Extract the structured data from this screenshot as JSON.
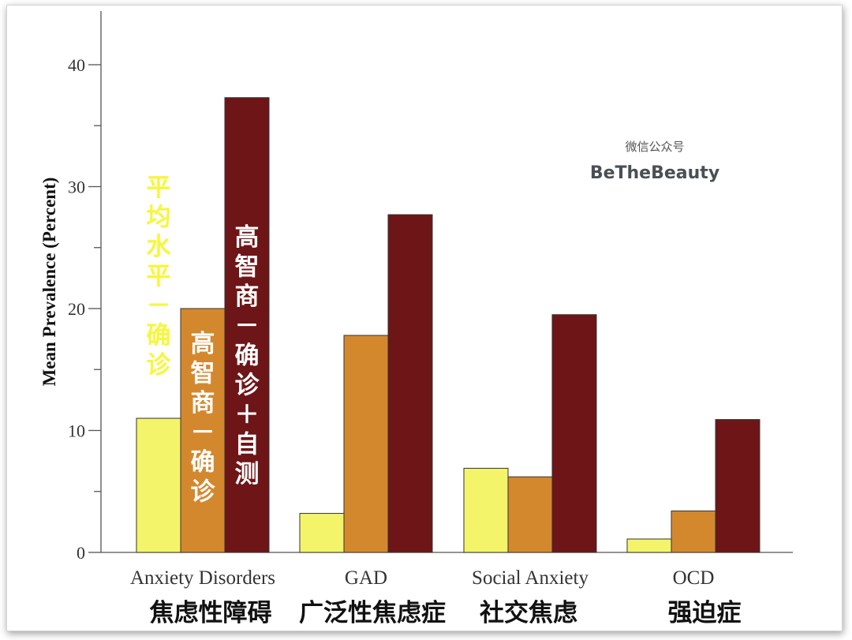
{
  "chart_data": {
    "type": "bar",
    "ylabel": "Mean Prevalence (Percent)",
    "ylim": [
      0,
      40
    ],
    "yticks": [
      0,
      10,
      20,
      30,
      40
    ],
    "categories": [
      "Anxiety Disorders",
      "GAD",
      "Social Anxiety",
      "OCD"
    ],
    "categories_cn": [
      "焦虑性障碍",
      "广泛性焦虑症",
      "社交焦虑",
      "强迫症"
    ],
    "series": [
      {
        "name": "平均水平－确诊",
        "color": "#f3f46a",
        "text_color": "#f6f63e",
        "values": [
          11,
          3.2,
          6.9,
          1.1
        ]
      },
      {
        "name": "高智商－确诊",
        "color": "#d4882e",
        "text_color": "#ffffff",
        "values": [
          20,
          17.8,
          6.2,
          3.4
        ]
      },
      {
        "name": "高智商－确诊＋自测",
        "color": "#6e1517",
        "text_color": "#ffffff",
        "values": [
          37.3,
          27.7,
          19.5,
          10.9
        ]
      }
    ],
    "grid": false,
    "legend": "none (series names written vertically inside first group's bars)"
  },
  "watermark": {
    "line1": "微信公众号",
    "line2": "BeTheBeauty"
  }
}
